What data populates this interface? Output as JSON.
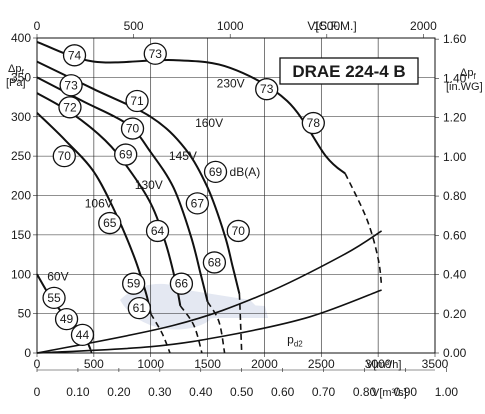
{
  "chart_data": {
    "type": "line",
    "title": "DRAE 224-4 B",
    "axes": {
      "bottom_primary": {
        "unit": "V[m³/h]",
        "min": 0,
        "max": 3500,
        "ticks": [
          0,
          500,
          1000,
          1500,
          2000,
          2500,
          3000,
          3500
        ],
        "tick_labels": [
          "0",
          "500",
          "1000",
          "1500",
          "2000",
          "2500",
          "3000",
          "3500"
        ]
      },
      "bottom_secondary": {
        "unit": "V[m³/s]",
        "ticks": [
          0,
          0.1,
          0.2,
          0.3,
          0.4,
          0.5,
          0.6,
          0.7,
          0.8,
          0.9,
          1.0
        ],
        "tick_labels": [
          "0",
          "0.10",
          "0.20",
          "0.30",
          "0.40",
          "0.50",
          "0.60",
          "0.70",
          "0.80",
          "0.90",
          "1.00"
        ]
      },
      "top": {
        "unit": "V[C.F.M.]",
        "ticks": [
          0,
          500,
          1000,
          1500,
          2000
        ],
        "tick_labels": [
          "0",
          "500",
          "1000",
          "1500",
          "2000"
        ]
      },
      "left": {
        "symbol": "Δpf",
        "unit": "[Pa]",
        "min": 0,
        "max": 400,
        "ticks": [
          0,
          50,
          100,
          150,
          200,
          250,
          300,
          350,
          400
        ],
        "tick_labels": [
          "0",
          "50",
          "100",
          "150",
          "200",
          "250",
          "300",
          "350",
          "400"
        ]
      },
      "right": {
        "symbol": "Δpf",
        "unit": "[in.WG]",
        "ticks": [
          0,
          0.2,
          0.4,
          0.6,
          0.8,
          1.0,
          1.2,
          1.4,
          1.6
        ],
        "tick_labels": [
          "0.00",
          "0.20",
          "0.40",
          "0.60",
          "0.80",
          "1.00",
          "1.20",
          "1.40",
          "1.60"
        ]
      }
    },
    "grid": true,
    "series": [
      {
        "name": "230V",
        "points": [
          [
            0,
            395
          ],
          [
            500,
            370
          ],
          [
            1200,
            372
          ],
          [
            1700,
            362
          ],
          [
            2200,
            320
          ],
          [
            2540,
            250
          ],
          [
            2710,
            228
          ]
        ]
      },
      {
        "name": "160V",
        "points": [
          [
            0,
            370
          ],
          [
            500,
            335
          ],
          [
            1000,
            300
          ],
          [
            1300,
            260
          ],
          [
            1500,
            210
          ],
          [
            1650,
            150
          ],
          [
            1720,
            110
          ],
          [
            1780,
            75
          ]
        ]
      },
      {
        "name": "145V",
        "points": [
          [
            0,
            350
          ],
          [
            400,
            320
          ],
          [
            800,
            290
          ],
          [
            1000,
            255
          ],
          [
            1200,
            210
          ],
          [
            1350,
            150
          ],
          [
            1440,
            100
          ],
          [
            1500,
            65
          ]
        ]
      },
      {
        "name": "130V",
        "points": [
          [
            0,
            330
          ],
          [
            300,
            305
          ],
          [
            600,
            270
          ],
          [
            800,
            235
          ],
          [
            1000,
            190
          ],
          [
            1130,
            140
          ],
          [
            1220,
            90
          ],
          [
            1260,
            60
          ]
        ]
      },
      {
        "name": "106V",
        "points": [
          [
            0,
            305
          ],
          [
            250,
            270
          ],
          [
            500,
            230
          ],
          [
            700,
            175
          ],
          [
            860,
            120
          ],
          [
            960,
            75
          ],
          [
            1000,
            50
          ]
        ]
      },
      {
        "name": "60V",
        "points": [
          [
            0,
            100
          ],
          [
            100,
            75
          ],
          [
            200,
            55
          ],
          [
            320,
            38
          ],
          [
            420,
            20
          ],
          [
            470,
            5
          ]
        ]
      }
    ],
    "limit_lines": [
      [
        [
          2710,
          228
        ],
        [
          2900,
          170
        ],
        [
          3000,
          120
        ],
        [
          3030,
          85
        ]
      ],
      [
        [
          1780,
          75
        ],
        [
          1790,
          40
        ],
        [
          1800,
          0
        ]
      ],
      [
        [
          1500,
          65
        ],
        [
          1600,
          40
        ],
        [
          1650,
          0
        ]
      ],
      [
        [
          1260,
          60
        ],
        [
          1380,
          35
        ],
        [
          1450,
          0
        ]
      ],
      [
        [
          1000,
          50
        ],
        [
          1100,
          25
        ],
        [
          1170,
          0
        ]
      ],
      [
        [
          470,
          5
        ],
        [
          480,
          0
        ]
      ]
    ],
    "system_curves": [
      {
        "points": [
          [
            0,
            0
          ],
          [
            1200,
            35
          ],
          [
            2000,
            75
          ],
          [
            2700,
            125
          ],
          [
            3030,
            155
          ]
        ]
      },
      {
        "name": "pd2",
        "points": [
          [
            0,
            0
          ],
          [
            1000,
            8
          ],
          [
            1700,
            23
          ],
          [
            2400,
            46
          ],
          [
            3030,
            80
          ]
        ]
      }
    ],
    "noise_labels": [
      {
        "value": "74",
        "x": 330,
        "y": 378
      },
      {
        "value": "73",
        "x": 1040,
        "y": 380
      },
      {
        "value": "73",
        "x": 2020,
        "y": 335
      },
      {
        "value": "78",
        "x": 2430,
        "y": 292
      },
      {
        "value": "73",
        "x": 300,
        "y": 340
      },
      {
        "value": "71",
        "x": 880,
        "y": 320
      },
      {
        "value": "72",
        "x": 290,
        "y": 312
      },
      {
        "value": "70",
        "x": 840,
        "y": 285
      },
      {
        "value": "69",
        "x": 1570,
        "y": 230
      },
      {
        "value": "70",
        "x": 240,
        "y": 250
      },
      {
        "value": "69",
        "x": 780,
        "y": 252
      },
      {
        "value": "67",
        "x": 1410,
        "y": 190
      },
      {
        "value": "65",
        "x": 640,
        "y": 165
      },
      {
        "value": "64",
        "x": 1060,
        "y": 155
      },
      {
        "value": "70",
        "x": 1770,
        "y": 155
      },
      {
        "value": "68",
        "x": 1560,
        "y": 115
      },
      {
        "value": "59",
        "x": 850,
        "y": 88
      },
      {
        "value": "66",
        "x": 1270,
        "y": 88
      },
      {
        "value": "61",
        "x": 900,
        "y": 57
      },
      {
        "value": "55",
        "x": 150,
        "y": 70
      },
      {
        "value": "49",
        "x": 260,
        "y": 43
      },
      {
        "value": "44",
        "x": 400,
        "y": 23
      }
    ],
    "speed_labels": [
      {
        "text": "230V",
        "x": 1580,
        "y": 337
      },
      {
        "text": "160V",
        "x": 1390,
        "y": 287
      },
      {
        "text": "145V",
        "x": 1160,
        "y": 245
      },
      {
        "text": "130V",
        "x": 860,
        "y": 208
      },
      {
        "text": "106V",
        "x": 420,
        "y": 185
      },
      {
        "text": "60V",
        "x": 90,
        "y": 92
      }
    ],
    "annotations": {
      "dba_label": "dB(A)",
      "pd_label": "p",
      "pd_sub": "d2"
    }
  }
}
